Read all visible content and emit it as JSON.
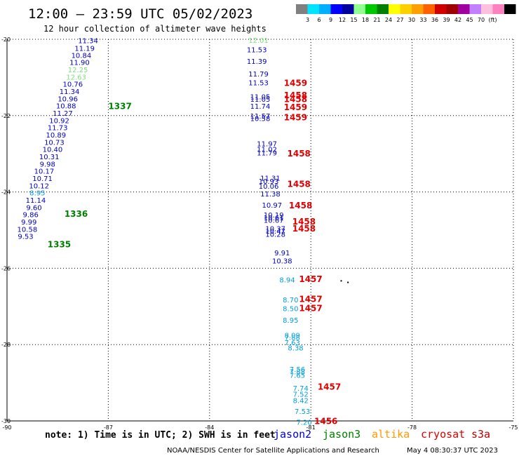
{
  "header": {
    "title": "12:00 — 23:59 UTC 05/02/2023",
    "subtitle": "12 hour collection of altimeter wave heights"
  },
  "color_scale": {
    "colors": [
      "#808080",
      "#00e5ff",
      "#00b0ff",
      "#0000ff",
      "#0000a0",
      "#90ff90",
      "#00c800",
      "#008000",
      "#ffff00",
      "#ffd000",
      "#ffa000",
      "#ff6000",
      "#d00000",
      "#a00000",
      "#a000a0",
      "#c080ff",
      "#ffc0e0",
      "#ff80c0",
      "#000000"
    ],
    "labels": [
      "3",
      "6",
      "9",
      "12",
      "15",
      "18",
      "21",
      "24",
      "27",
      "30",
      "33",
      "36",
      "39",
      "42",
      "45",
      "70",
      "(ft)"
    ]
  },
  "footer": {
    "note": "note: 1) Time is in UTC; 2) SWH is in feet",
    "satellites": [
      {
        "name": "jason2",
        "color": "#0000e0"
      },
      {
        "name": "jason3",
        "color": "#008000"
      },
      {
        "name": "altika",
        "color": "#ff9900"
      },
      {
        "name": "cryosat",
        "color": "#e00000"
      },
      {
        "name": "s3a",
        "color": "#c00000"
      }
    ],
    "credit": "NOAA/NESDIS Center for Satellite Applications and Research",
    "timestamp": "May  4 08:30:37 UTC 2023"
  },
  "chart_data": {
    "type": "scatter",
    "xlim": [
      -90,
      -75
    ],
    "ylim": [
      -30,
      -20
    ],
    "x_ticks": [
      -90,
      -87,
      -84,
      -81,
      -78,
      -75
    ],
    "y_ticks": [
      -20,
      -22,
      -24,
      -26,
      -28,
      -30
    ],
    "grid": true,
    "points": [
      {
        "lon": -87.6,
        "lat": -20.03,
        "swh": "11.34",
        "color": "#0000c8"
      },
      {
        "lon": -87.7,
        "lat": -20.23,
        "swh": "11.19",
        "color": "#0000c8"
      },
      {
        "lon": -87.8,
        "lat": -20.41,
        "swh": "10.84",
        "color": "#0000c8"
      },
      {
        "lon": -87.85,
        "lat": -20.6,
        "swh": "11.90",
        "color": "#0000c8"
      },
      {
        "lon": -87.9,
        "lat": -20.79,
        "swh": "12.25",
        "color": "#80e080"
      },
      {
        "lon": -87.95,
        "lat": -20.98,
        "swh": "12.63",
        "color": "#80e080"
      },
      {
        "lon": -88.05,
        "lat": -21.17,
        "swh": "10.76",
        "color": "#0000c8"
      },
      {
        "lon": -88.15,
        "lat": -21.36,
        "swh": "11.34",
        "color": "#0000c8"
      },
      {
        "lon": -88.2,
        "lat": -21.55,
        "swh": "10.96",
        "color": "#0000c8"
      },
      {
        "lon": -88.25,
        "lat": -21.74,
        "swh": "10.88",
        "color": "#0000c8"
      },
      {
        "lon": -88.35,
        "lat": -21.93,
        "swh": "11.27",
        "color": "#0000c8"
      },
      {
        "lon": -88.45,
        "lat": -22.12,
        "swh": "10.92",
        "color": "#0000c8"
      },
      {
        "lon": -88.5,
        "lat": -22.31,
        "swh": "11.73",
        "color": "#0000c8"
      },
      {
        "lon": -88.55,
        "lat": -22.5,
        "swh": "10.89",
        "color": "#0000c8"
      },
      {
        "lon": -88.6,
        "lat": -22.69,
        "swh": "10.73",
        "color": "#0000c8"
      },
      {
        "lon": -88.65,
        "lat": -22.88,
        "swh": "10.40",
        "color": "#0000c8"
      },
      {
        "lon": -88.75,
        "lat": -23.07,
        "swh": "10.31",
        "color": "#0000c8"
      },
      {
        "lon": -88.8,
        "lat": -23.26,
        "swh": "9.98",
        "color": "#0000c8"
      },
      {
        "lon": -88.9,
        "lat": -23.45,
        "swh": "10.17",
        "color": "#0000c8"
      },
      {
        "lon": -88.95,
        "lat": -23.64,
        "swh": "10.71",
        "color": "#0000c8"
      },
      {
        "lon": -89.05,
        "lat": -23.83,
        "swh": "10.12",
        "color": "#0000c8"
      },
      {
        "lon": -89.1,
        "lat": -24.02,
        "swh": "8.95",
        "color": "#00a0e0"
      },
      {
        "lon": -89.15,
        "lat": -24.21,
        "swh": "11.14",
        "color": "#0000c8"
      },
      {
        "lon": -89.2,
        "lat": -24.4,
        "swh": "9.60",
        "color": "#0000c8"
      },
      {
        "lon": -89.3,
        "lat": -24.59,
        "swh": "9.86",
        "color": "#0000c8"
      },
      {
        "lon": -89.35,
        "lat": -24.78,
        "swh": "9.99",
        "color": "#0000c8"
      },
      {
        "lon": -89.4,
        "lat": -24.97,
        "swh": "10.58",
        "color": "#0000c8"
      },
      {
        "lon": -89.45,
        "lat": -25.16,
        "swh": "9.53",
        "color": "#0000c8"
      },
      {
        "lon": -82.55,
        "lat": -20.02,
        "swh": "12.01",
        "color": "#80e080"
      },
      {
        "lon": -82.6,
        "lat": -20.27,
        "swh": "11.53",
        "color": "#0000c8"
      },
      {
        "lon": -82.6,
        "lat": -20.57,
        "swh": "11.39",
        "color": "#0000c8"
      },
      {
        "lon": -82.55,
        "lat": -20.9,
        "swh": "11.79",
        "color": "#0000c8"
      },
      {
        "lon": -82.55,
        "lat": -21.13,
        "swh": "11.53",
        "color": "#0000c8"
      },
      {
        "lon": -82.5,
        "lat": -21.5,
        "swh": "11.05",
        "color": "#0000c8"
      },
      {
        "lon": -82.5,
        "lat": -21.56,
        "swh": "11.05",
        "color": "#0000c8"
      },
      {
        "lon": -82.5,
        "lat": -21.75,
        "swh": "11.74",
        "color": "#0000c8"
      },
      {
        "lon": -82.5,
        "lat": -22.0,
        "swh": "11.57",
        "color": "#0000c8"
      },
      {
        "lon": -82.5,
        "lat": -22.07,
        "swh": "10.58",
        "color": "#0000c8"
      },
      {
        "lon": -82.3,
        "lat": -22.73,
        "swh": "11.97",
        "color": "#0000c8"
      },
      {
        "lon": -82.3,
        "lat": -22.88,
        "swh": "11.02",
        "color": "#0000c8"
      },
      {
        "lon": -82.3,
        "lat": -22.97,
        "swh": "11.79",
        "color": "#0000c8"
      },
      {
        "lon": -82.2,
        "lat": -23.63,
        "swh": "11.31",
        "color": "#0000c8"
      },
      {
        "lon": -82.25,
        "lat": -23.71,
        "swh": "10.93",
        "color": "#0000c8"
      },
      {
        "lon": -82.25,
        "lat": -23.84,
        "swh": "10.06",
        "color": "#0000c8"
      },
      {
        "lon": -82.2,
        "lat": -24.04,
        "swh": "11.38",
        "color": "#0000c8"
      },
      {
        "lon": -82.15,
        "lat": -24.34,
        "swh": "10.97",
        "color": "#0000c8"
      },
      {
        "lon": -82.1,
        "lat": -24.6,
        "swh": "10.19",
        "color": "#0000c8"
      },
      {
        "lon": -82.1,
        "lat": -24.67,
        "swh": "10.61",
        "color": "#0000c8"
      },
      {
        "lon": -82.1,
        "lat": -24.73,
        "swh": "10.67",
        "color": "#0000c8"
      },
      {
        "lon": -82.05,
        "lat": -24.95,
        "swh": "10.37",
        "color": "#0000c8"
      },
      {
        "lon": -82.05,
        "lat": -25.02,
        "swh": "10.47",
        "color": "#0000c8"
      },
      {
        "lon": -82.05,
        "lat": -25.1,
        "swh": "10.28",
        "color": "#0000c8"
      },
      {
        "lon": -81.85,
        "lat": -25.59,
        "swh": "9.91",
        "color": "#0000c8"
      },
      {
        "lon": -81.85,
        "lat": -25.8,
        "swh": "10.38",
        "color": "#0000c8"
      },
      {
        "lon": -81.7,
        "lat": -26.3,
        "swh": "8.94",
        "color": "#00a0e0"
      },
      {
        "lon": -81.6,
        "lat": -26.82,
        "swh": "8.70",
        "color": "#00a0e0"
      },
      {
        "lon": -81.6,
        "lat": -27.05,
        "swh": "8.50",
        "color": "#00a0e0"
      },
      {
        "lon": -81.6,
        "lat": -27.35,
        "swh": "8.95",
        "color": "#00a0e0"
      },
      {
        "lon": -81.55,
        "lat": -27.75,
        "swh": "8.09",
        "color": "#00a0e0"
      },
      {
        "lon": -81.55,
        "lat": -27.8,
        "swh": "7.88",
        "color": "#00a0e0"
      },
      {
        "lon": -81.55,
        "lat": -27.94,
        "swh": "7.63",
        "color": "#00a0e0"
      },
      {
        "lon": -81.45,
        "lat": -28.08,
        "swh": "8.38",
        "color": "#00a0e0"
      },
      {
        "lon": -81.4,
        "lat": -28.64,
        "swh": "7.56",
        "color": "#00a0e0"
      },
      {
        "lon": -81.4,
        "lat": -28.7,
        "swh": "7.88",
        "color": "#00a0e0"
      },
      {
        "lon": -81.4,
        "lat": -28.8,
        "swh": "7.65",
        "color": "#00a0e0"
      },
      {
        "lon": -81.3,
        "lat": -29.14,
        "swh": "7.74",
        "color": "#00a0e0"
      },
      {
        "lon": -81.3,
        "lat": -29.29,
        "swh": "7.52",
        "color": "#00a0e0"
      },
      {
        "lon": -81.3,
        "lat": -29.46,
        "swh": "8.42",
        "color": "#00a0e0"
      },
      {
        "lon": -81.25,
        "lat": -29.74,
        "swh": "7.53",
        "color": "#00a0e0"
      },
      {
        "lon": -81.2,
        "lat": -30.03,
        "swh": "7.20",
        "color": "#00a0e0"
      }
    ],
    "pass_labels": [
      {
        "lon": -87.0,
        "lat": -21.76,
        "text": "1337",
        "color": "#008000"
      },
      {
        "lon": -88.3,
        "lat": -24.58,
        "text": "1336",
        "color": "#008000"
      },
      {
        "lon": -88.8,
        "lat": -25.38,
        "text": "1335",
        "color": "#008000"
      },
      {
        "lon": -81.8,
        "lat": -21.15,
        "text": "1459",
        "color": "#e00000"
      },
      {
        "lon": -81.8,
        "lat": -21.47,
        "text": "1458",
        "color": "#e00000"
      },
      {
        "lon": -81.8,
        "lat": -21.57,
        "text": "1458",
        "color": "#e00000"
      },
      {
        "lon": -81.8,
        "lat": -21.78,
        "text": "1459",
        "color": "#e00000"
      },
      {
        "lon": -81.8,
        "lat": -22.05,
        "text": "1459",
        "color": "#e00000"
      },
      {
        "lon": -81.7,
        "lat": -23.0,
        "text": "1458",
        "color": "#e00000"
      },
      {
        "lon": -81.7,
        "lat": -23.8,
        "text": "1458",
        "color": "#e00000"
      },
      {
        "lon": -81.65,
        "lat": -24.36,
        "text": "1458",
        "color": "#e00000"
      },
      {
        "lon": -81.55,
        "lat": -24.78,
        "text": "1458",
        "color": "#e00000"
      },
      {
        "lon": -81.55,
        "lat": -24.96,
        "text": "1458",
        "color": "#e00000"
      },
      {
        "lon": -81.35,
        "lat": -26.29,
        "text": "1457",
        "color": "#e00000"
      },
      {
        "lon": -81.35,
        "lat": -26.81,
        "text": "1457",
        "color": "#e00000"
      },
      {
        "lon": -81.35,
        "lat": -27.05,
        "text": "1457",
        "color": "#e00000"
      },
      {
        "lon": -80.8,
        "lat": -29.11,
        "text": "1457",
        "color": "#e00000"
      },
      {
        "lon": -80.9,
        "lat": -30.01,
        "text": "1456",
        "color": "#e00000"
      }
    ],
    "marks": [
      {
        "lon": -80.1,
        "lat": -26.33
      },
      {
        "lon": -79.9,
        "lat": -26.37
      }
    ]
  }
}
